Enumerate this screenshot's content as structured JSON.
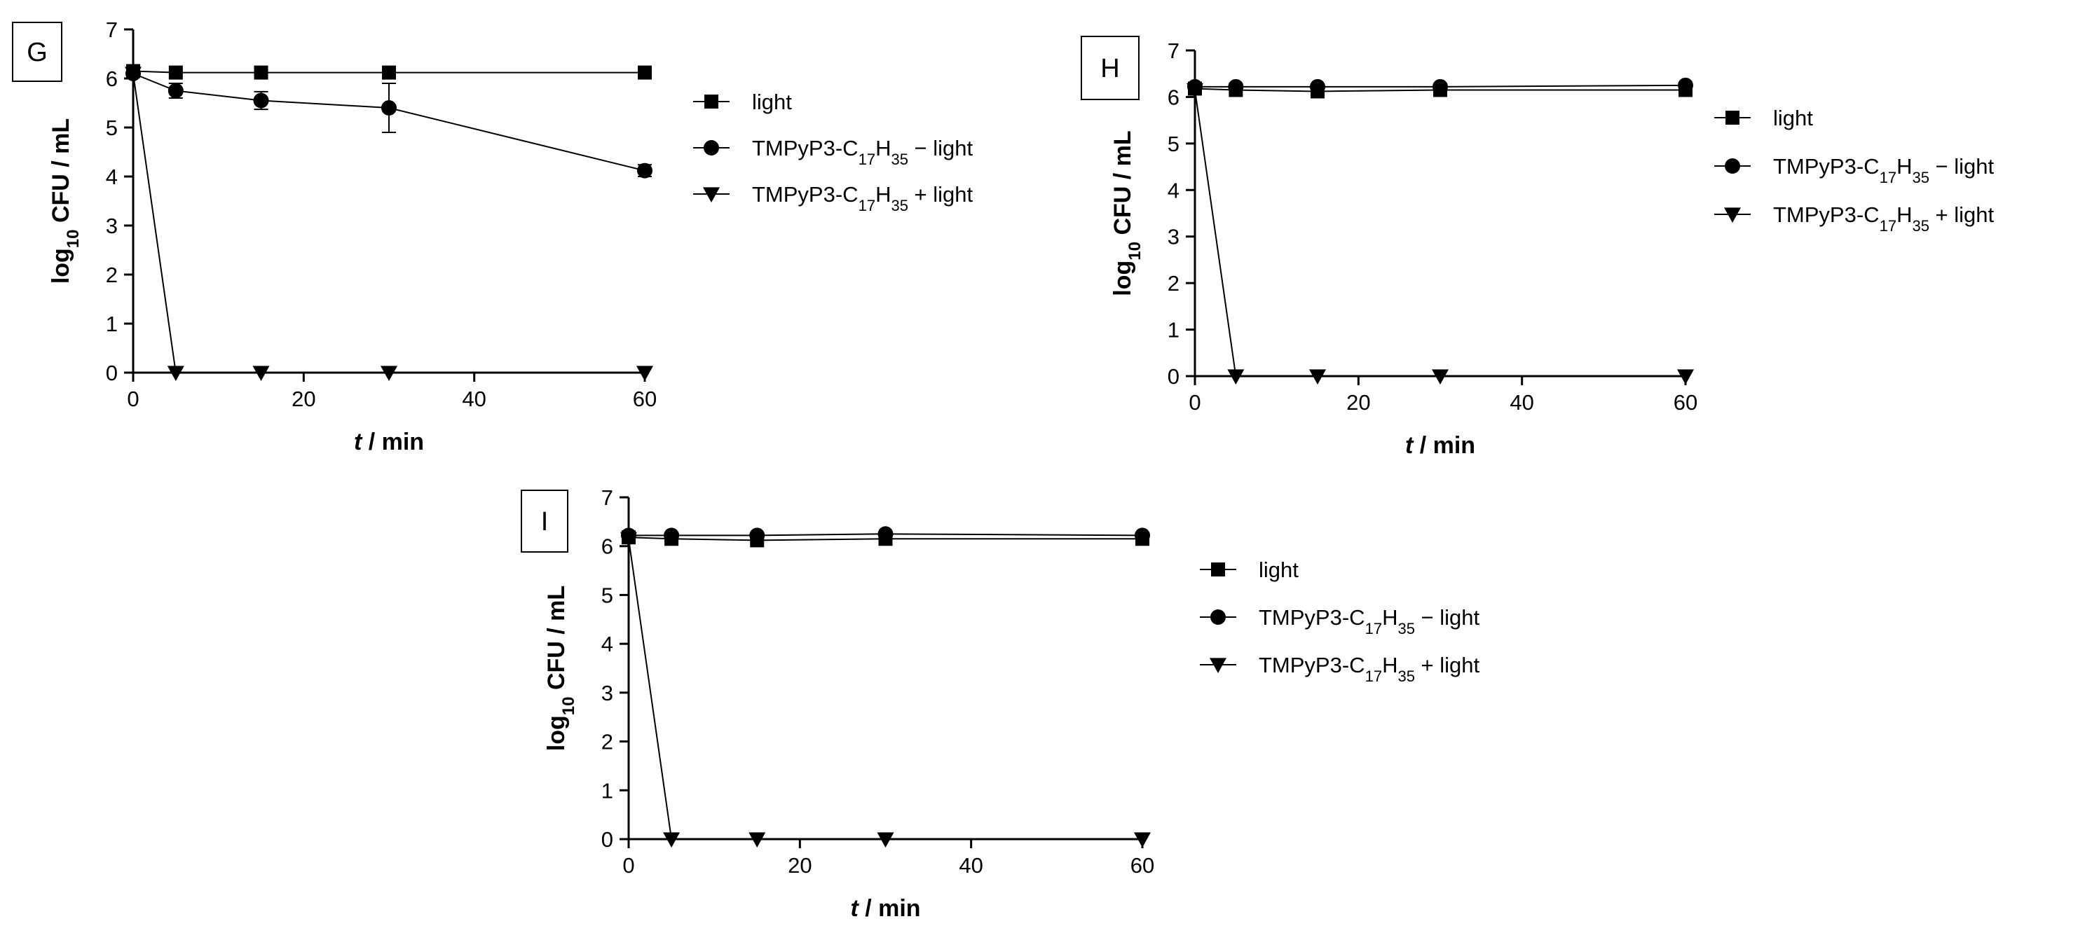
{
  "colors": {
    "foreground": "#000000",
    "background": "#ffffff"
  },
  "legend_symbols": [
    "square-marker-icon",
    "circle-marker-icon",
    "triangle-down-marker-icon"
  ],
  "chart_data": [
    {
      "type": "line",
      "panel_label": "G",
      "xlabel": {
        "italic": "t",
        "rest": " / min"
      },
      "ylabel": {
        "base": "log",
        "sub": "10",
        "rest": " CFU / mL"
      },
      "xlim": [
        0,
        60
      ],
      "ylim": [
        0,
        7
      ],
      "xticks": [
        0,
        20,
        40,
        60
      ],
      "yticks": [
        0,
        1,
        2,
        3,
        4,
        5,
        6,
        7
      ],
      "legend_position": "right",
      "x": [
        0,
        5,
        15,
        30,
        60
      ],
      "series": [
        {
          "name": "light",
          "marker": "square",
          "values": [
            6.15,
            6.12,
            6.12,
            6.12,
            6.12
          ],
          "errors": [
            0,
            0,
            0,
            0,
            0
          ]
        },
        {
          "name": "TMPyP3-C17H35 − light",
          "marker": "circle",
          "values": [
            6.1,
            5.75,
            5.55,
            5.4,
            4.12
          ],
          "errors": [
            0,
            0.15,
            0.18,
            0.5,
            0.12
          ]
        },
        {
          "name": "TMPyP3-C17H35 + light",
          "marker": "triangle-down",
          "values": [
            6.1,
            0,
            0,
            0,
            0
          ],
          "errors": [
            0,
            0,
            0,
            0,
            0
          ]
        }
      ]
    },
    {
      "type": "line",
      "panel_label": "H",
      "xlabel": {
        "italic": "t",
        "rest": " / min"
      },
      "ylabel": {
        "base": "log",
        "sub": "10",
        "rest": " CFU / mL"
      },
      "xlim": [
        0,
        60
      ],
      "ylim": [
        0,
        7
      ],
      "xticks": [
        0,
        20,
        40,
        60
      ],
      "yticks": [
        0,
        1,
        2,
        3,
        4,
        5,
        6,
        7
      ],
      "legend_position": "right",
      "x": [
        0,
        5,
        15,
        30,
        60
      ],
      "series": [
        {
          "name": "light",
          "marker": "square",
          "values": [
            6.18,
            6.15,
            6.12,
            6.15,
            6.15
          ],
          "errors": [
            0,
            0,
            0,
            0,
            0
          ]
        },
        {
          "name": "TMPyP3-C17H35 − light",
          "marker": "circle",
          "values": [
            6.22,
            6.22,
            6.22,
            6.22,
            6.25
          ],
          "errors": [
            0,
            0,
            0,
            0,
            0
          ]
        },
        {
          "name": "TMPyP3-C17H35 + light",
          "marker": "triangle-down",
          "values": [
            6.15,
            0,
            0,
            0,
            0
          ],
          "errors": [
            0,
            0,
            0,
            0,
            0
          ]
        }
      ]
    },
    {
      "type": "line",
      "panel_label": "I",
      "xlabel": {
        "italic": "t",
        "rest": " / min"
      },
      "ylabel": {
        "base": "log",
        "sub": "10",
        "rest": " CFU / mL"
      },
      "xlim": [
        0,
        60
      ],
      "ylim": [
        0,
        7
      ],
      "xticks": [
        0,
        20,
        40,
        60
      ],
      "yticks": [
        0,
        1,
        2,
        3,
        4,
        5,
        6,
        7
      ],
      "legend_position": "right",
      "x": [
        0,
        5,
        15,
        30,
        60
      ],
      "series": [
        {
          "name": "light",
          "marker": "square",
          "values": [
            6.18,
            6.15,
            6.12,
            6.15,
            6.15
          ],
          "errors": [
            0,
            0,
            0,
            0,
            0
          ]
        },
        {
          "name": "TMPyP3-C17H35 − light",
          "marker": "circle",
          "values": [
            6.22,
            6.22,
            6.22,
            6.25,
            6.22
          ],
          "errors": [
            0,
            0,
            0,
            0,
            0
          ]
        },
        {
          "name": "TMPyP3-C17H35 + light",
          "marker": "triangle-down",
          "values": [
            6.15,
            0,
            0,
            0,
            0
          ],
          "errors": [
            0,
            0,
            0,
            0,
            0
          ]
        }
      ]
    }
  ]
}
